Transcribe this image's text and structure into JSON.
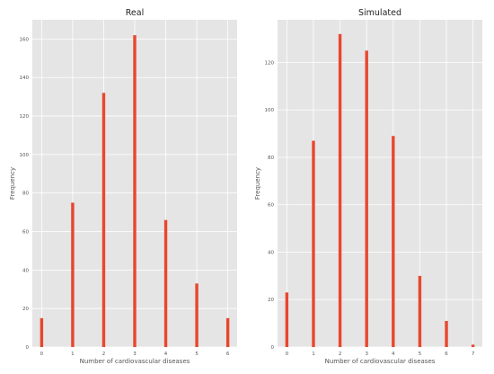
{
  "colors": {
    "background": "#ffffff",
    "plot_background": "#e5e5e5",
    "grid": "#ffffff",
    "bar": "#e8472f",
    "text": "#555555",
    "title": "#222222"
  },
  "chart_data": [
    {
      "type": "bar",
      "title": "Real",
      "xlabel": "Number of cardiovascular diseases",
      "ylabel": "Frequency",
      "x": [
        0,
        1,
        2,
        3,
        4,
        5,
        6
      ],
      "values": [
        15,
        75,
        132,
        162,
        66,
        33,
        15
      ],
      "xticks": [
        0,
        1,
        2,
        3,
        4,
        5,
        6
      ],
      "yticks": [
        0,
        20,
        40,
        60,
        80,
        100,
        120,
        140,
        160
      ],
      "xlim": [
        -0.3,
        6.3
      ],
      "ylim": [
        0,
        170
      ],
      "grid": true
    },
    {
      "type": "bar",
      "title": "Simulated",
      "xlabel": "Number of cardiovascular diseases",
      "ylabel": "Frequency",
      "x": [
        0,
        1,
        2,
        3,
        4,
        5,
        6,
        7
      ],
      "values": [
        23,
        87,
        132,
        125,
        89,
        30,
        11,
        1
      ],
      "xticks": [
        0,
        1,
        2,
        3,
        4,
        5,
        6,
        7
      ],
      "yticks": [
        0,
        20,
        40,
        60,
        80,
        100,
        120
      ],
      "xlim": [
        -0.35,
        7.35
      ],
      "ylim": [
        0,
        138
      ],
      "grid": true
    }
  ]
}
